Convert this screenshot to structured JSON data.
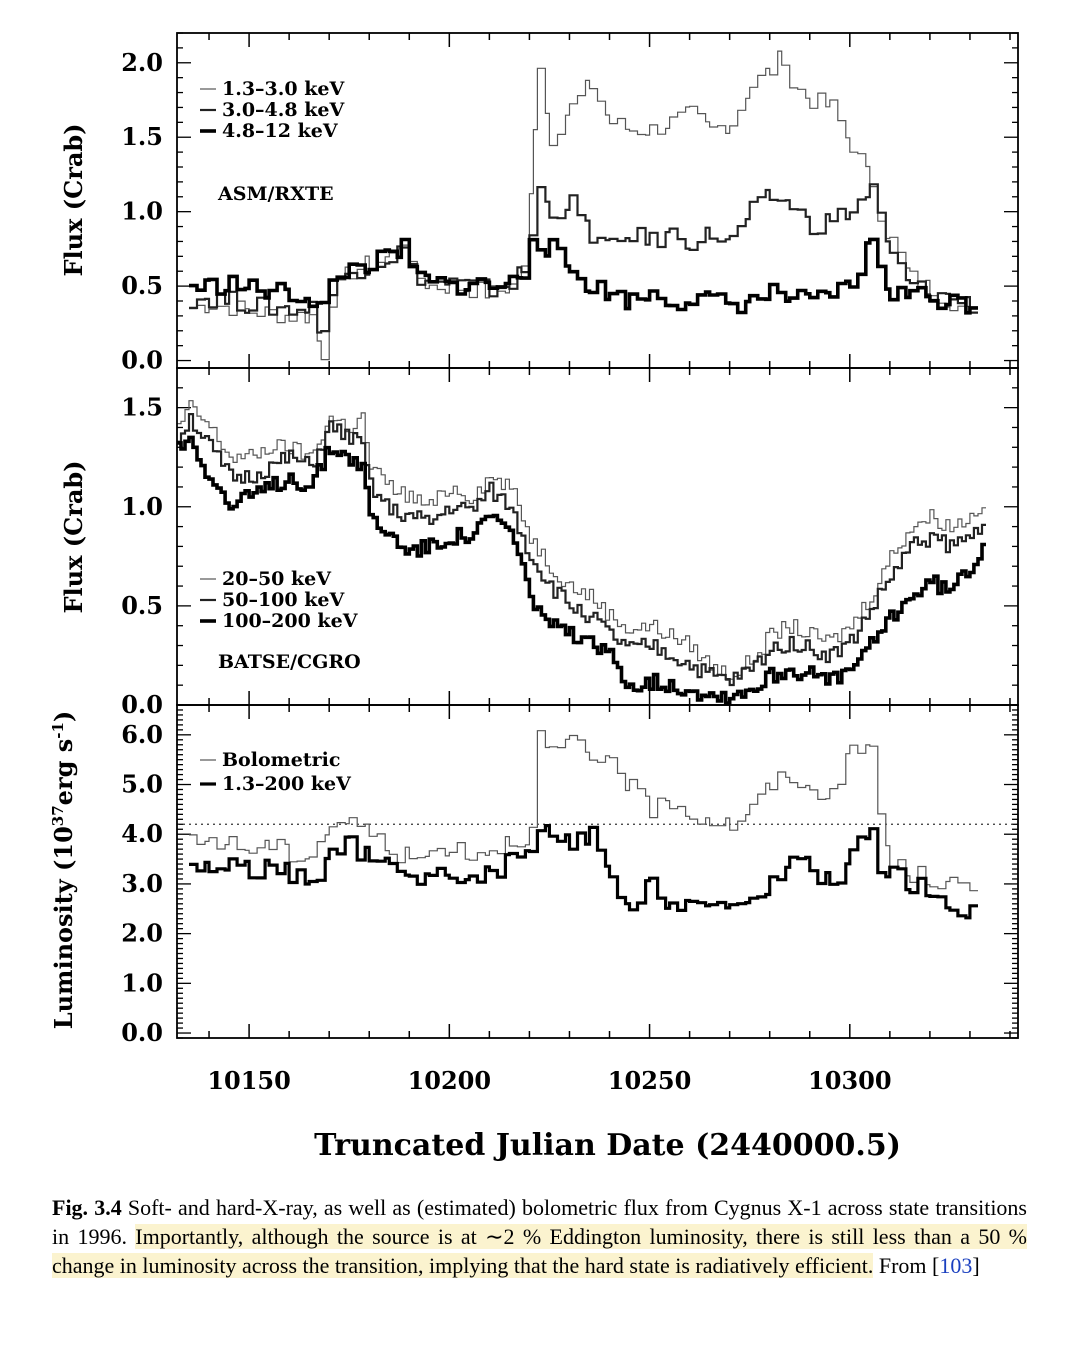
{
  "chart_data": [
    {
      "type": "line",
      "instrument_label": "ASM/RXTE",
      "ylabel": "Flux (Crab)",
      "ylim": [
        -0.05,
        2.2
      ],
      "yticks": [
        "0.0",
        "0.5",
        "1.0",
        "1.5",
        "2.0"
      ],
      "xlim": [
        10132,
        10342
      ],
      "step": 2,
      "series": [
        {
          "name": "1.3–3.0 keV",
          "stroke": "#555555",
          "width": 1.2,
          "x": [
            10135,
            10140,
            10145,
            10150,
            10155,
            10160,
            10165,
            10168,
            10170,
            10175,
            10180,
            10185,
            10188,
            10190,
            10195,
            10200,
            10205,
            10210,
            10215,
            10218,
            10220,
            10221,
            10222,
            10225,
            10230,
            10235,
            10240,
            10245,
            10250,
            10255,
            10260,
            10265,
            10270,
            10275,
            10280,
            10283,
            10285,
            10290,
            10295,
            10300,
            10305,
            10307,
            10310,
            10315,
            10320,
            10325,
            10330,
            10332
          ],
          "y": [
            0.35,
            0.38,
            0.36,
            0.33,
            0.32,
            0.3,
            0.3,
            0.05,
            0.42,
            0.6,
            0.65,
            0.7,
            0.82,
            0.6,
            0.5,
            0.5,
            0.48,
            0.45,
            0.5,
            0.6,
            1.1,
            1.6,
            2.0,
            1.5,
            1.7,
            1.85,
            1.6,
            1.55,
            1.55,
            1.6,
            1.65,
            1.55,
            1.6,
            1.85,
            1.95,
            2.05,
            1.85,
            1.75,
            1.7,
            1.45,
            1.2,
            1.0,
            0.8,
            0.55,
            0.48,
            0.4,
            0.3,
            0.25
          ]
        },
        {
          "name": "3.0–4.8 keV",
          "stroke": "#222222",
          "width": 2.2,
          "x": [
            10135,
            10140,
            10145,
            10150,
            10155,
            10160,
            10165,
            10168,
            10170,
            10175,
            10180,
            10185,
            10188,
            10190,
            10195,
            10200,
            10205,
            10210,
            10215,
            10218,
            10220,
            10222,
            10225,
            10230,
            10235,
            10240,
            10245,
            10250,
            10255,
            10260,
            10265,
            10270,
            10275,
            10280,
            10285,
            10290,
            10295,
            10300,
            10305,
            10307,
            10310,
            10315,
            10320,
            10325,
            10330,
            10332
          ],
          "y": [
            0.42,
            0.42,
            0.4,
            0.38,
            0.36,
            0.35,
            0.35,
            0.2,
            0.45,
            0.6,
            0.65,
            0.7,
            0.75,
            0.6,
            0.52,
            0.52,
            0.5,
            0.48,
            0.52,
            0.6,
            0.85,
            1.15,
            1.0,
            1.05,
            0.85,
            0.75,
            0.85,
            0.8,
            0.85,
            0.8,
            0.85,
            0.8,
            1.0,
            1.1,
            1.05,
            0.9,
            0.95,
            1.0,
            1.15,
            0.95,
            0.7,
            0.5,
            0.45,
            0.42,
            0.38,
            0.35
          ]
        },
        {
          "name": "4.8–12 keV",
          "stroke": "#000000",
          "width": 3.6,
          "x": [
            10135,
            10140,
            10145,
            10150,
            10155,
            10160,
            10165,
            10168,
            10170,
            10175,
            10180,
            10185,
            10188,
            10190,
            10195,
            10200,
            10205,
            10210,
            10215,
            10218,
            10220,
            10222,
            10225,
            10230,
            10235,
            10240,
            10245,
            10250,
            10255,
            10260,
            10265,
            10270,
            10275,
            10280,
            10285,
            10290,
            10295,
            10300,
            10305,
            10307,
            10310,
            10315,
            10320,
            10325,
            10330,
            10332
          ],
          "y": [
            0.5,
            0.5,
            0.52,
            0.48,
            0.46,
            0.45,
            0.42,
            0.35,
            0.5,
            0.62,
            0.65,
            0.7,
            0.75,
            0.6,
            0.52,
            0.5,
            0.52,
            0.5,
            0.52,
            0.6,
            0.85,
            0.8,
            0.75,
            0.6,
            0.5,
            0.45,
            0.4,
            0.45,
            0.4,
            0.42,
            0.4,
            0.38,
            0.4,
            0.45,
            0.42,
            0.38,
            0.45,
            0.5,
            0.8,
            0.65,
            0.45,
            0.45,
            0.42,
            0.4,
            0.38,
            0.4
          ]
        }
      ],
      "legend_position": "top-left"
    },
    {
      "type": "line",
      "instrument_label": "BATSE/CGRO",
      "ylabel": "Flux (Crab)",
      "ylim": [
        0,
        1.7
      ],
      "yticks": [
        "0.0",
        "0.5",
        "1.0",
        "1.5"
      ],
      "xlim": [
        10132,
        10342
      ],
      "step": 1,
      "series": [
        {
          "name": "20–50 keV",
          "stroke": "#555555",
          "width": 1.2,
          "x": [
            10132,
            10135,
            10140,
            10145,
            10150,
            10155,
            10160,
            10165,
            10170,
            10175,
            10178,
            10180,
            10185,
            10190,
            10195,
            10200,
            10205,
            10210,
            10215,
            10220,
            10225,
            10230,
            10235,
            10240,
            10245,
            10250,
            10255,
            10260,
            10265,
            10270,
            10275,
            10280,
            10285,
            10290,
            10295,
            10300,
            10305,
            10310,
            10315,
            10320,
            10325,
            10330,
            10334
          ],
          "y": [
            1.4,
            1.5,
            1.4,
            1.25,
            1.25,
            1.3,
            1.3,
            1.25,
            1.45,
            1.4,
            1.45,
            1.2,
            1.1,
            1.05,
            1.0,
            1.1,
            1.05,
            1.15,
            1.1,
            0.85,
            0.7,
            0.6,
            0.55,
            0.45,
            0.38,
            0.4,
            0.35,
            0.3,
            0.2,
            0.15,
            0.22,
            0.35,
            0.4,
            0.35,
            0.32,
            0.4,
            0.55,
            0.75,
            0.9,
            0.95,
            0.9,
            0.95,
            1.05
          ]
        },
        {
          "name": "50–100 keV",
          "stroke": "#222222",
          "width": 2.2,
          "x": [
            10132,
            10135,
            10140,
            10145,
            10150,
            10155,
            10160,
            10165,
            10170,
            10175,
            10178,
            10180,
            10185,
            10190,
            10195,
            10200,
            10205,
            10210,
            10215,
            10220,
            10225,
            10230,
            10235,
            10240,
            10245,
            10250,
            10255,
            10260,
            10265,
            10270,
            10275,
            10280,
            10285,
            10290,
            10295,
            10300,
            10305,
            10310,
            10315,
            10320,
            10325,
            10330,
            10334
          ],
          "y": [
            1.35,
            1.45,
            1.3,
            1.15,
            1.15,
            1.2,
            1.25,
            1.2,
            1.4,
            1.35,
            1.3,
            1.1,
            0.98,
            0.95,
            0.92,
            1.0,
            0.98,
            1.08,
            1.0,
            0.75,
            0.6,
            0.5,
            0.45,
            0.35,
            0.28,
            0.3,
            0.25,
            0.2,
            0.15,
            0.12,
            0.18,
            0.28,
            0.32,
            0.28,
            0.25,
            0.32,
            0.48,
            0.65,
            0.8,
            0.85,
            0.8,
            0.85,
            0.95
          ]
        },
        {
          "name": "100–200 keV",
          "stroke": "#000000",
          "width": 3.6,
          "x": [
            10132,
            10135,
            10140,
            10145,
            10150,
            10155,
            10160,
            10165,
            10170,
            10175,
            10178,
            10180,
            10185,
            10190,
            10195,
            10200,
            10205,
            10210,
            10215,
            10220,
            10225,
            10230,
            10235,
            10240,
            10245,
            10250,
            10255,
            10260,
            10265,
            10270,
            10275,
            10280,
            10285,
            10290,
            10295,
            10300,
            10305,
            10310,
            10315,
            10320,
            10325,
            10330,
            10334
          ],
          "y": [
            1.3,
            1.35,
            1.15,
            1.0,
            1.05,
            1.1,
            1.15,
            1.1,
            1.3,
            1.25,
            1.2,
            0.95,
            0.85,
            0.78,
            0.8,
            0.85,
            0.85,
            0.95,
            0.88,
            0.55,
            0.4,
            0.35,
            0.3,
            0.25,
            0.1,
            0.12,
            0.1,
            0.08,
            0.05,
            0.05,
            0.08,
            0.15,
            0.18,
            0.15,
            0.12,
            0.18,
            0.3,
            0.45,
            0.55,
            0.62,
            0.58,
            0.7,
            0.85
          ]
        }
      ],
      "legend_position": "bottom-left"
    },
    {
      "type": "line",
      "ylabel": "Luminosity (10^37 erg s^-1)",
      "ylim": [
        -0.1,
        6.6
      ],
      "yticks": [
        "0.0",
        "1.0",
        "2.0",
        "3.0",
        "4.0",
        "5.0",
        "6.0"
      ],
      "xlim": [
        10132,
        10342
      ],
      "xticks": [
        "10150",
        "10200",
        "10250",
        "10300"
      ],
      "xtick_values": [
        10150,
        10200,
        10250,
        10300
      ],
      "xlabel": "Truncated Julian Date (2440000.5)",
      "reference_line": {
        "y": 4.2,
        "style": "dotted"
      },
      "step": 2,
      "series": [
        {
          "name": "Bolometric",
          "stroke": "#555555",
          "width": 1.2,
          "x": [
            10135,
            10140,
            10145,
            10150,
            10155,
            10160,
            10165,
            10170,
            10175,
            10180,
            10185,
            10190,
            10195,
            10200,
            10205,
            10210,
            10215,
            10220,
            10222,
            10225,
            10230,
            10235,
            10240,
            10245,
            10250,
            10255,
            10260,
            10265,
            10270,
            10275,
            10280,
            10285,
            10290,
            10295,
            10300,
            10305,
            10307,
            10310,
            10315,
            10320,
            10325,
            10330,
            10332
          ],
          "y": [
            3.8,
            3.9,
            3.8,
            3.7,
            3.8,
            3.6,
            3.6,
            4.2,
            4.3,
            4.0,
            3.7,
            3.5,
            3.6,
            3.8,
            3.6,
            3.7,
            3.9,
            4.0,
            6.0,
            5.6,
            5.9,
            5.4,
            5.6,
            4.9,
            4.5,
            4.7,
            4.4,
            4.3,
            4.2,
            4.5,
            5.0,
            5.2,
            4.8,
            4.9,
            5.6,
            5.8,
            4.4,
            3.4,
            3.2,
            3.1,
            3.0,
            2.8,
            3.2
          ]
        },
        {
          "name": "1.3–200 keV",
          "stroke": "#000000",
          "width": 3.2,
          "x": [
            10135,
            10140,
            10145,
            10150,
            10155,
            10160,
            10165,
            10170,
            10175,
            10180,
            10185,
            10190,
            10195,
            10200,
            10205,
            10210,
            10215,
            10220,
            10222,
            10225,
            10230,
            10235,
            10240,
            10245,
            10250,
            10255,
            10260,
            10265,
            10270,
            10275,
            10280,
            10285,
            10290,
            10295,
            10300,
            10305,
            10307,
            10310,
            10315,
            10320,
            10325,
            10330,
            10332
          ],
          "y": [
            3.4,
            3.3,
            3.4,
            3.3,
            3.3,
            3.2,
            3.0,
            3.6,
            3.8,
            3.5,
            3.3,
            3.2,
            3.1,
            3.3,
            3.0,
            3.2,
            3.5,
            3.6,
            4.2,
            3.9,
            3.8,
            4.0,
            3.0,
            2.4,
            3.0,
            2.6,
            2.7,
            2.5,
            2.4,
            2.7,
            3.0,
            3.6,
            3.3,
            3.0,
            3.5,
            4.2,
            3.4,
            3.2,
            3.0,
            2.8,
            2.6,
            2.4,
            2.7
          ]
        }
      ],
      "legend_position": "top-left"
    }
  ],
  "caption": {
    "label": "Fig. 3.4",
    "text_plain": "Soft- and hard-X-ray, as well as (estimated) bolometric flux from Cygnus X-1 across state transitions in 1996. ",
    "text_highlight": "Importantly, although the source is at ∼2 % Eddington luminosity, there is still less than a 50 % change in luminosity across the transition, implying that the hard state is radiatively efficient.",
    "text_after": " From [",
    "ref": "103",
    "text_end": "]"
  }
}
